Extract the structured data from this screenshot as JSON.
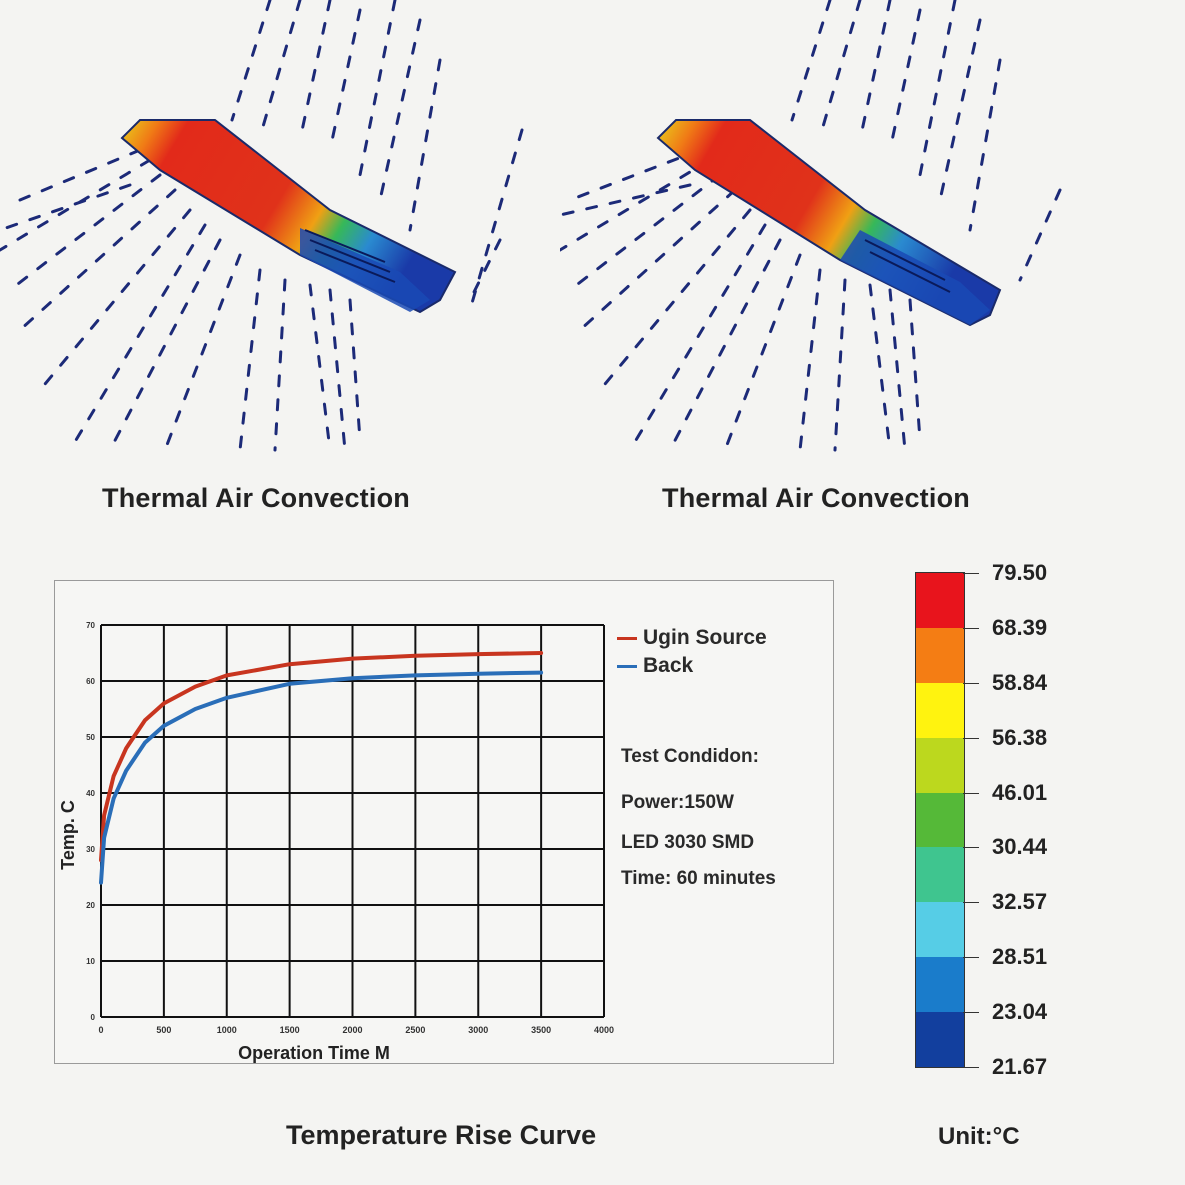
{
  "simulations": [
    {
      "caption": "Thermal Air Convection"
    },
    {
      "caption": "Thermal Air Convection"
    }
  ],
  "chart_data": {
    "type": "line",
    "title": "Temperature Rise Curve",
    "xlabel": "Operation Time M",
    "ylabel": "Temp. C",
    "x_ticks": [
      0,
      500,
      1000,
      1500,
      2000,
      2500,
      3000,
      3500,
      4000
    ],
    "y_tick_count": 8,
    "xlim": [
      0,
      4000
    ],
    "ylim": [
      0,
      70
    ],
    "grid": true,
    "legend_position": "right",
    "series": [
      {
        "name": "Ugin Source",
        "color": "#c8351f",
        "x": [
          0,
          25,
          100,
          200,
          350,
          500,
          750,
          1000,
          1500,
          2000,
          2500,
          3000,
          3500
        ],
        "y": [
          28,
          36,
          43,
          48,
          53,
          56,
          59,
          61,
          63,
          64,
          64.5,
          64.8,
          65
        ]
      },
      {
        "name": "Back",
        "color": "#2a6eb8",
        "x": [
          0,
          25,
          100,
          200,
          350,
          500,
          750,
          1000,
          1500,
          2000,
          2500,
          3000,
          3500
        ],
        "y": [
          24,
          32,
          39,
          44,
          49,
          52,
          55,
          57,
          59.5,
          60.5,
          61,
          61.3,
          61.5
        ]
      }
    ]
  },
  "legend": [
    {
      "label": "Ugin Source",
      "color": "#c8351f"
    },
    {
      "label": "Back",
      "color": "#2a6eb8"
    }
  ],
  "test_condition": {
    "heading": "Test Condidon:",
    "power": "Power:150W",
    "led": "LED 3030 SMD",
    "time": "Time: 60 minutes"
  },
  "color_scale": {
    "labels": [
      "79.50",
      "68.39",
      "58.84",
      "56.38",
      "46.01",
      "30.44",
      "32.57",
      "28.51",
      "23.04",
      "21.67"
    ],
    "colors": [
      "#e8141c",
      "#f47d14",
      "#fff30f",
      "#bcd81e",
      "#55b938",
      "#3fc58f",
      "#56cde6",
      "#1a7ccb",
      "#123f9e"
    ],
    "unit": "Unit:°C"
  }
}
